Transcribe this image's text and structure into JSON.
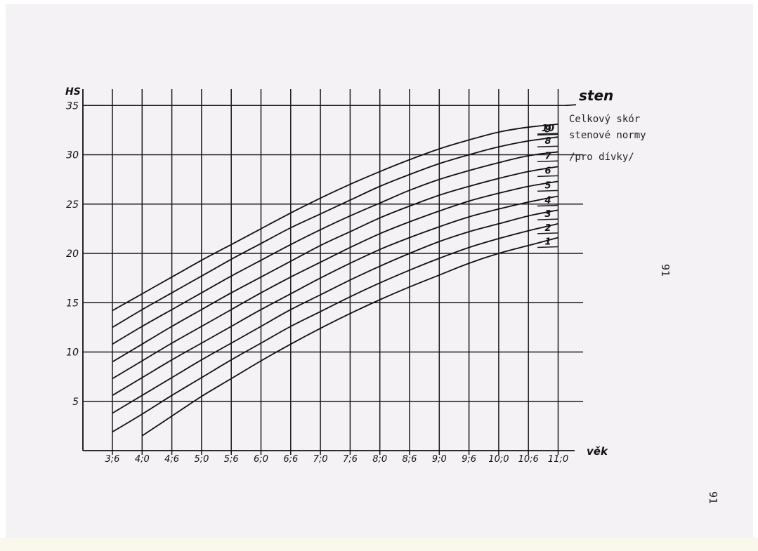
{
  "page_numbers": [
    "91",
    "91"
  ],
  "chart_data": {
    "type": "line",
    "title_lines": [
      "Celkový skór",
      "stenové normy",
      "/pro dívky/"
    ],
    "ylabel": "HS",
    "xlabel": "věk",
    "series_label": "sten",
    "ylim": [
      0,
      36
    ],
    "yticks": [
      5,
      10,
      15,
      20,
      25,
      30,
      35
    ],
    "ytick_labels": [
      "5",
      "10",
      "15",
      "20",
      "25",
      "30",
      "35"
    ],
    "categories": [
      "3;6",
      "4;0",
      "4;6",
      "5;0",
      "5;6",
      "6;0",
      "6;6",
      "7;0",
      "7;6",
      "8;0",
      "8;6",
      "9;0",
      "9;6",
      "10;0",
      "10;6",
      "11;0"
    ],
    "grid": true,
    "series": [
      {
        "name": "1",
        "values": [
          null,
          1.5,
          3.5,
          5.5,
          7.3,
          9.1,
          10.8,
          12.4,
          13.9,
          15.3,
          16.6,
          17.8,
          19.0,
          20.0,
          20.8,
          21.6
        ]
      },
      {
        "name": "2",
        "values": [
          1.9,
          3.7,
          5.6,
          7.4,
          9.2,
          10.9,
          12.6,
          14.1,
          15.6,
          17.0,
          18.3,
          19.5,
          20.6,
          21.5,
          22.3,
          23.0
        ]
      },
      {
        "name": "3",
        "values": [
          3.8,
          5.6,
          7.4,
          9.2,
          10.9,
          12.6,
          14.3,
          15.8,
          17.3,
          18.7,
          20.0,
          21.2,
          22.2,
          23.0,
          23.8,
          24.4
        ]
      },
      {
        "name": "4",
        "values": [
          5.6,
          7.4,
          9.2,
          10.9,
          12.6,
          14.3,
          15.9,
          17.5,
          19.0,
          20.4,
          21.6,
          22.7,
          23.7,
          24.5,
          25.2,
          25.8
        ]
      },
      {
        "name": "5",
        "values": [
          7.3,
          9.1,
          10.9,
          12.6,
          14.3,
          16.0,
          17.6,
          19.1,
          20.6,
          22.0,
          23.2,
          24.3,
          25.3,
          26.1,
          26.8,
          27.3
        ]
      },
      {
        "name": "6",
        "values": [
          9.0,
          10.8,
          12.6,
          14.3,
          16.0,
          17.6,
          19.2,
          20.8,
          22.2,
          23.6,
          24.8,
          25.9,
          26.8,
          27.6,
          28.3,
          28.8
        ]
      },
      {
        "name": "7",
        "values": [
          10.8,
          12.6,
          14.3,
          16.0,
          17.7,
          19.3,
          20.9,
          22.4,
          23.8,
          25.1,
          26.4,
          27.5,
          28.4,
          29.2,
          29.9,
          30.3
        ]
      },
      {
        "name": "8",
        "values": [
          12.5,
          14.3,
          16.0,
          17.7,
          19.4,
          21.0,
          22.6,
          24.0,
          25.4,
          26.8,
          28.0,
          29.1,
          30.0,
          30.8,
          31.4,
          31.8
        ]
      },
      {
        "name": "9",
        "values": [
          null,
          null,
          null,
          null,
          null,
          null,
          null,
          null,
          null,
          null,
          null,
          null,
          null,
          null,
          null,
          33.0
        ]
      },
      {
        "name": "10",
        "values": [
          14.2,
          15.9,
          17.6,
          19.3,
          20.9,
          22.5,
          24.1,
          25.6,
          27.0,
          28.3,
          29.5,
          30.6,
          31.5,
          32.3,
          32.8,
          33.1
        ]
      }
    ]
  }
}
